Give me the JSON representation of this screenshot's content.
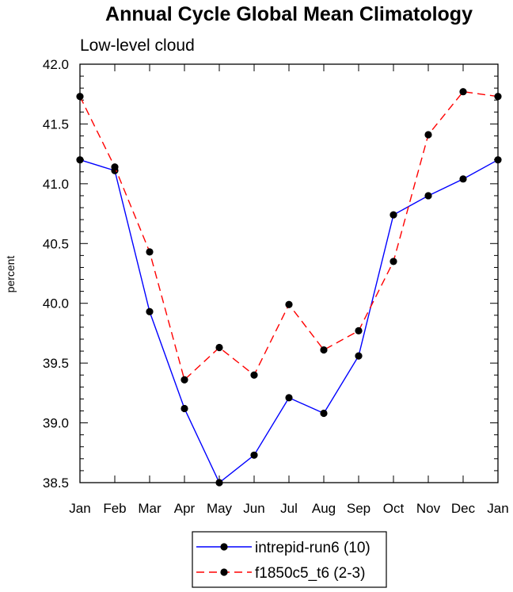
{
  "chart_data": {
    "type": "line",
    "title": "Annual Cycle Global Mean Climatology",
    "subtitle": "Low-level cloud",
    "xlabel": "",
    "ylabel": "percent",
    "ylim": [
      38.5,
      42.0
    ],
    "yticks": [
      "38.5",
      "39.0",
      "39.5",
      "40.0",
      "40.5",
      "41.0",
      "41.5",
      "42.0"
    ],
    "categories": [
      "Jan",
      "Feb",
      "Mar",
      "Apr",
      "May",
      "Jun",
      "Jul",
      "Aug",
      "Sep",
      "Oct",
      "Nov",
      "Dec",
      "Jan"
    ],
    "series": [
      {
        "name": "intrepid-run6 (10)",
        "color": "#0000ff",
        "dash": "solid",
        "values": [
          41.2,
          41.11,
          39.93,
          39.12,
          38.5,
          38.73,
          39.21,
          39.08,
          39.56,
          40.74,
          40.9,
          41.04,
          41.2
        ]
      },
      {
        "name": "f1850c5_t6 (2-3)",
        "color": "#ff0000",
        "dash": "dashed",
        "values": [
          41.73,
          41.14,
          40.43,
          39.36,
          39.63,
          39.4,
          39.99,
          39.61,
          39.77,
          40.35,
          41.41,
          41.77,
          41.73
        ]
      }
    ]
  }
}
